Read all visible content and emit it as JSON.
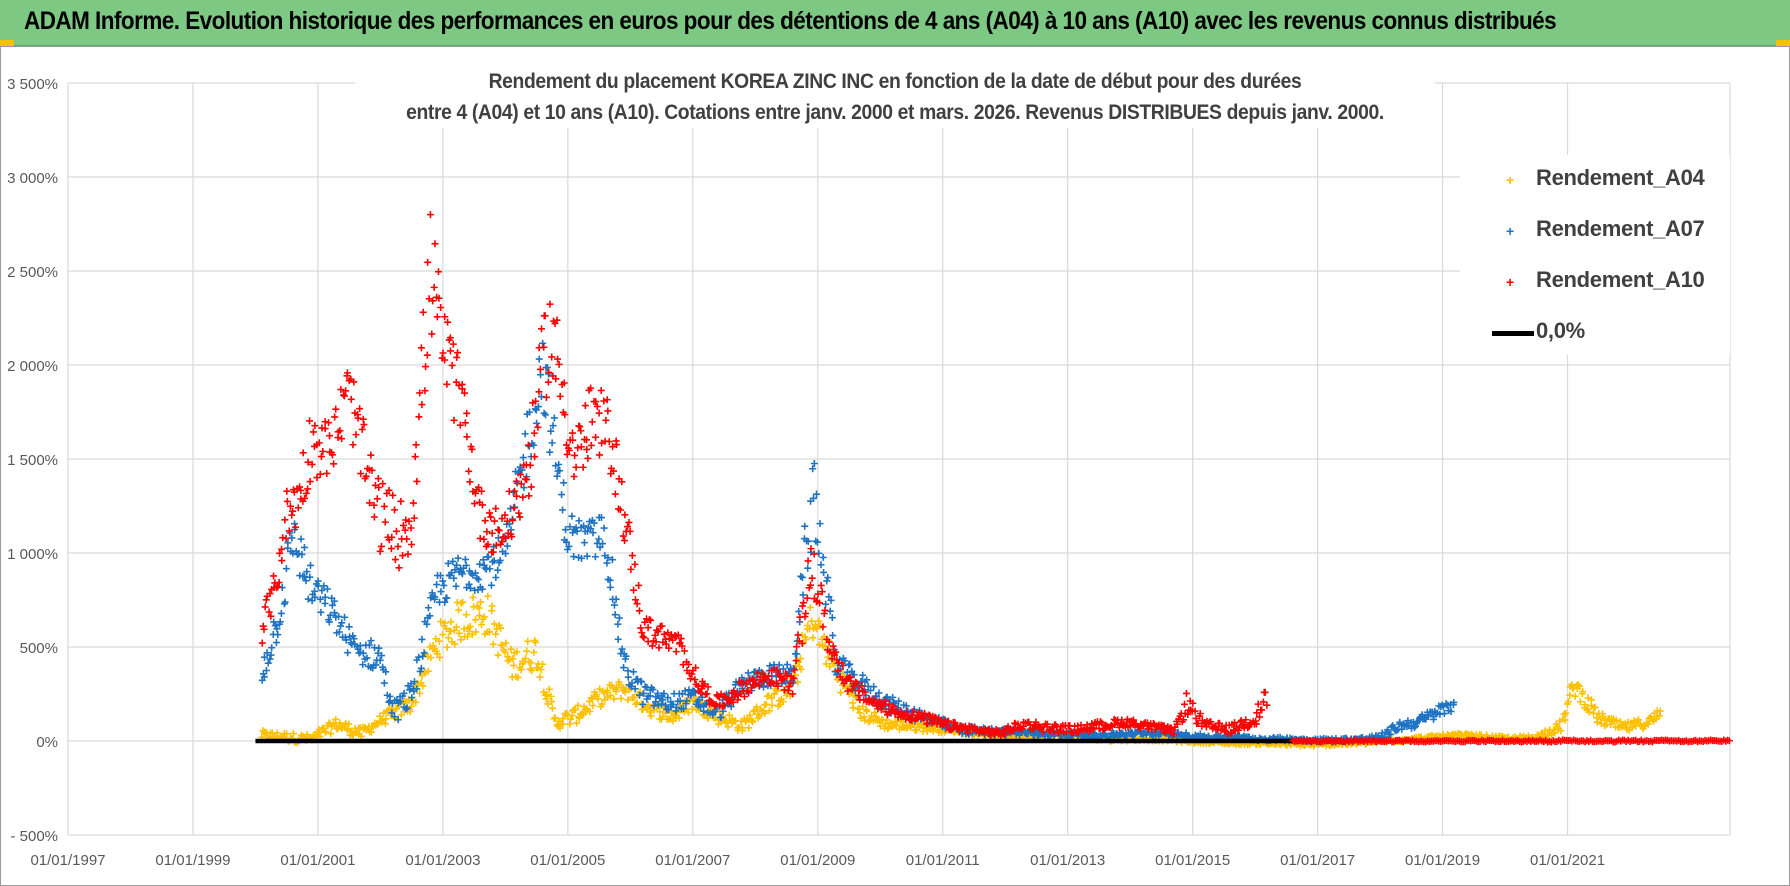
{
  "banner": {
    "title": "ADAM Informe. Evolution historique des performances en euros pour des détentions de 4 ans (A04) à 10 ans (A10) avec les revenus connus distribués",
    "background_color": "#7dc983"
  },
  "chart_data": {
    "type": "scatter",
    "title_lines": [
      "Rendement du placement KOREA ZINC INC en fonction de la date de début pour des durées",
      "entre 4 (A04) et 10 ans (A10).  Cotations entre janv. 2000 et mars. 2026.  Revenus DISTRIBUES depuis janv. 2000."
    ],
    "xlabel": "",
    "ylabel": "",
    "xlim": [
      1997.0,
      2023.6
    ],
    "ylim": [
      -500,
      3500
    ],
    "x_ticks": [
      {
        "value": 1997.0,
        "label": "01/01/1997"
      },
      {
        "value": 1999.0,
        "label": "01/01/1999"
      },
      {
        "value": 2001.0,
        "label": "01/01/2001"
      },
      {
        "value": 2003.0,
        "label": "01/01/2003"
      },
      {
        "value": 2005.0,
        "label": "01/01/2005"
      },
      {
        "value": 2007.0,
        "label": "01/01/2007"
      },
      {
        "value": 2009.0,
        "label": "01/01/2009"
      },
      {
        "value": 2011.0,
        "label": "01/01/2011"
      },
      {
        "value": 2013.0,
        "label": "01/01/2013"
      },
      {
        "value": 2015.0,
        "label": "01/01/2015"
      },
      {
        "value": 2017.0,
        "label": "01/01/2017"
      },
      {
        "value": 2019.0,
        "label": "01/01/2019"
      },
      {
        "value": 2021.0,
        "label": "01/01/2021"
      }
    ],
    "y_ticks": [
      {
        "value": 3500,
        "label": "3 500%"
      },
      {
        "value": 3000,
        "label": "3 000%"
      },
      {
        "value": 2500,
        "label": "2 500%"
      },
      {
        "value": 2000,
        "label": "2 000%"
      },
      {
        "value": 1500,
        "label": "1 500%"
      },
      {
        "value": 1000,
        "label": "1 000%"
      },
      {
        "value": 500,
        "label": "500%"
      },
      {
        "value": 0,
        "label": "0%"
      },
      {
        "value": -500,
        "label": "- 500%"
      }
    ],
    "grid": true,
    "legend_position": "top-right",
    "series": [
      {
        "name": "Rendement_A04",
        "color": "#ffc000",
        "marker": "+",
        "x": [
          2000.1,
          2000.5,
          2000.9,
          2001.3,
          2001.7,
          2002.0,
          2002.5,
          2002.9,
          2003.3,
          2003.7,
          2004.1,
          2004.5,
          2004.8,
          2005.1,
          2005.5,
          2005.9,
          2006.3,
          2006.7,
          2007.0,
          2007.4,
          2007.8,
          2008.2,
          2008.6,
          2008.9,
          2009.3,
          2009.7,
          2010.1,
          2010.5,
          2010.9,
          2011.3,
          2011.7,
          2012.1,
          2012.5,
          2012.9,
          2013.3,
          2013.7,
          2014.1,
          2014.5,
          2014.9,
          2015.3,
          2015.7,
          2016.1,
          2016.5,
          2016.9,
          2017.3,
          2017.7,
          2018.1,
          2018.5,
          2018.9,
          2019.3,
          2019.7,
          2020.1,
          2020.5,
          2020.9,
          2021.1,
          2021.5,
          2021.9,
          2022.3,
          2022.5
        ],
        "y": [
          30,
          20,
          10,
          90,
          40,
          110,
          200,
          520,
          650,
          680,
          400,
          480,
          100,
          130,
          230,
          280,
          180,
          130,
          210,
          130,
          80,
          200,
          290,
          650,
          370,
          150,
          90,
          80,
          70,
          60,
          40,
          20,
          30,
          30,
          20,
          10,
          10,
          10,
          0,
          -5,
          -10,
          -10,
          -15,
          -20,
          -15,
          -10,
          0,
          10,
          20,
          30,
          20,
          10,
          20,
          80,
          300,
          120,
          70,
          100,
          150
        ],
        "spread": [
          25,
          25,
          25,
          35,
          30,
          30,
          50,
          90,
          120,
          120,
          80,
          100,
          40,
          45,
          50,
          55,
          45,
          40,
          45,
          40,
          35,
          50,
          70,
          100,
          80,
          40,
          30,
          25,
          25,
          20,
          20,
          15,
          15,
          15,
          12,
          12,
          10,
          10,
          10,
          10,
          10,
          10,
          10,
          10,
          10,
          10,
          10,
          12,
          12,
          12,
          12,
          12,
          15,
          30,
          60,
          35,
          25,
          30,
          35
        ]
      },
      {
        "name": "Rendement_A07",
        "color": "#1f73c3",
        "marker": "+",
        "x": [
          2000.1,
          2000.4,
          2000.6,
          2000.9,
          2001.2,
          2001.6,
          2002.0,
          2002.2,
          2002.5,
          2002.9,
          2003.3,
          2003.7,
          2004.0,
          2004.3,
          2004.6,
          2004.8,
          2005.0,
          2005.3,
          2005.6,
          2005.9,
          2006.2,
          2006.6,
          2007.0,
          2007.4,
          2007.8,
          2008.2,
          2008.6,
          2008.8,
          2008.95,
          2009.3,
          2009.7,
          2010.1,
          2010.5,
          2010.9,
          2011.3,
          2011.7,
          2012.1,
          2012.5,
          2012.9,
          2013.3,
          2013.7,
          2014.1,
          2014.5,
          2014.9,
          2015.3,
          2015.7,
          2016.1,
          2016.5,
          2016.9,
          2017.3,
          2017.7,
          2018.0,
          2018.3,
          2018.6,
          2018.9,
          2019.2
        ],
        "y": [
          350,
          700,
          1100,
          800,
          700,
          480,
          450,
          150,
          250,
          800,
          900,
          920,
          1000,
          1500,
          2000,
          1500,
          1100,
          1050,
          1100,
          400,
          250,
          200,
          230,
          150,
          300,
          350,
          350,
          1000,
          1300,
          400,
          300,
          200,
          150,
          100,
          60,
          50,
          50,
          40,
          40,
          30,
          30,
          40,
          40,
          30,
          20,
          20,
          10,
          10,
          5,
          5,
          10,
          20,
          80,
          100,
          150,
          200
        ],
        "spread": [
          60,
          120,
          150,
          120,
          90,
          80,
          80,
          60,
          70,
          100,
          110,
          110,
          120,
          180,
          220,
          180,
          130,
          120,
          130,
          80,
          60,
          50,
          50,
          45,
          60,
          60,
          60,
          150,
          250,
          70,
          60,
          45,
          40,
          30,
          25,
          20,
          20,
          18,
          18,
          15,
          15,
          15,
          15,
          15,
          12,
          12,
          10,
          10,
          10,
          10,
          10,
          15,
          25,
          30,
          35,
          40
        ]
      },
      {
        "name": "Rendement_A10",
        "color": "#ff0000",
        "marker": "+",
        "x": [
          2000.1,
          2000.3,
          2000.5,
          2000.7,
          2000.9,
          2001.2,
          2001.5,
          2001.8,
          2002.0,
          2002.3,
          2002.5,
          2002.8,
          2003.0,
          2003.3,
          2003.6,
          2003.9,
          2004.1,
          2004.4,
          2004.7,
          2004.9,
          2005.1,
          2005.4,
          2005.7,
          2005.9,
          2006.2,
          2006.5,
          2006.8,
          2007.1,
          2007.4,
          2007.8,
          2008.2,
          2008.6,
          2008.9,
          2009.2,
          2009.5,
          2009.9,
          2010.3,
          2010.7,
          2011.1,
          2011.5,
          2011.9,
          2012.3,
          2012.7,
          2013.1,
          2013.5,
          2013.9,
          2014.3,
          2014.7,
          2014.9,
          2015.2,
          2015.6,
          2016.0,
          2016.2
        ],
        "y": [
          600,
          800,
          1200,
          1300,
          1600,
          1550,
          1850,
          1400,
          1200,
          1100,
          1200,
          2500,
          2100,
          1800,
          1200,
          1100,
          1200,
          1500,
          2200,
          1900,
          1500,
          1700,
          1600,
          1200,
          600,
          550,
          500,
          300,
          200,
          280,
          350,
          300,
          950,
          500,
          300,
          200,
          150,
          120,
          80,
          60,
          40,
          90,
          70,
          60,
          80,
          100,
          80,
          50,
          200,
          80,
          60,
          120,
          250
        ],
        "spread": [
          80,
          100,
          150,
          150,
          200,
          150,
          200,
          200,
          200,
          180,
          200,
          350,
          250,
          200,
          150,
          130,
          150,
          200,
          300,
          250,
          180,
          220,
          200,
          150,
          80,
          70,
          70,
          50,
          40,
          50,
          50,
          50,
          150,
          70,
          50,
          40,
          30,
          30,
          25,
          20,
          20,
          25,
          25,
          20,
          25,
          25,
          20,
          20,
          60,
          30,
          25,
          40,
          60
        ]
      }
    ],
    "zero_line_label": "0,0%",
    "zero_line_color": "#000000",
    "zero_line_range": [
      2000.0,
      2016.6
    ],
    "red_flat_range": [
      2016.6,
      2023.6
    ],
    "legend": [
      {
        "name": "Rendement_A04",
        "color": "#ffc000",
        "type": "marker"
      },
      {
        "name": "Rendement_A07",
        "color": "#1f73c3",
        "type": "marker"
      },
      {
        "name": "Rendement_A10",
        "color": "#ff0000",
        "type": "marker"
      },
      {
        "name": "0,0%",
        "color": "#000000",
        "type": "line"
      }
    ]
  }
}
